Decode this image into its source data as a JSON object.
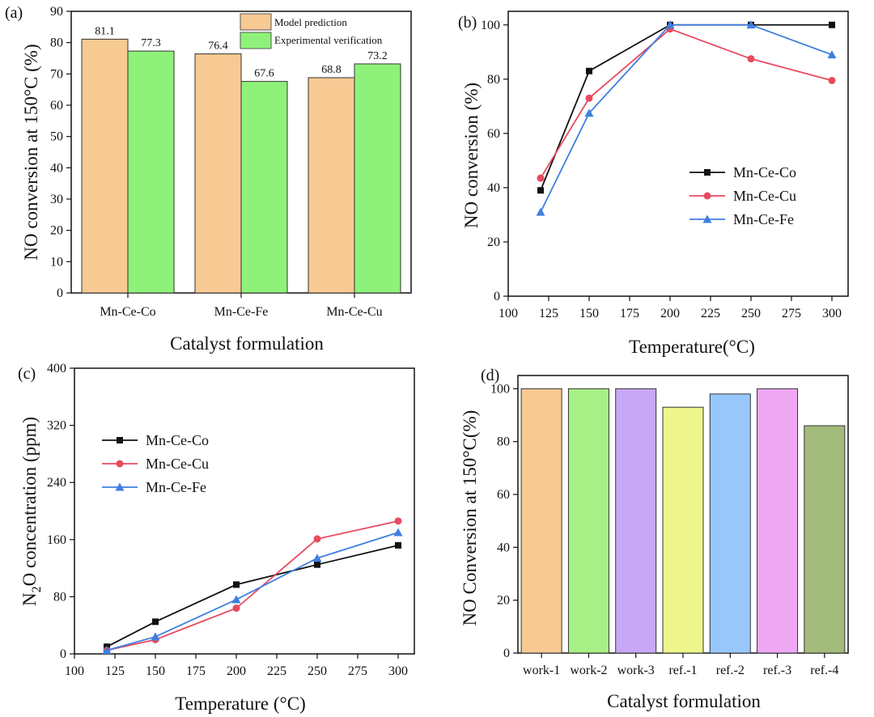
{
  "figure_colors": {
    "bar_model": "#f7c993",
    "bar_experiment": "#8ef27a",
    "series_co": "#111111",
    "series_cu": "#e84a5f",
    "series_fe": "#3f7fe0"
  },
  "chart_data": [
    {
      "panel": "(a)",
      "type": "bar",
      "title": "",
      "xlabel": "Catalyst formulation",
      "ylabel": "NO conversion at 150°C (%)",
      "ylim": [
        0,
        90
      ],
      "yticks": [
        0,
        10,
        20,
        30,
        40,
        50,
        60,
        70,
        80,
        90
      ],
      "categories": [
        "Mn-Ce-Co",
        "Mn-Ce-Fe",
        "Mn-Ce-Cu"
      ],
      "series": [
        {
          "name": "Model prediction",
          "color": "#f7c993",
          "values": [
            81.1,
            76.4,
            68.8
          ]
        },
        {
          "name": "Experimental verification",
          "color": "#8ef27a",
          "values": [
            77.3,
            67.6,
            73.2
          ]
        }
      ],
      "data_labels": [
        [
          "81.1",
          "77.3"
        ],
        [
          "76.4",
          "67.6"
        ],
        [
          "68.8",
          "73.2"
        ]
      ],
      "legend_position": "top-right"
    },
    {
      "panel": "(b)",
      "type": "line",
      "title": "",
      "xlabel": "Temperature(°C)",
      "ylabel": "NO conversion (%)",
      "xlim": [
        100,
        310
      ],
      "ylim": [
        0,
        105
      ],
      "xticks": [
        100,
        125,
        150,
        175,
        200,
        225,
        250,
        275,
        300
      ],
      "yticks": [
        0,
        20,
        40,
        60,
        80,
        100
      ],
      "x": [
        120,
        150,
        200,
        250,
        300
      ],
      "series": [
        {
          "name": "Mn-Ce-Co",
          "color": "#111111",
          "marker": "square",
          "values": [
            39,
            83,
            100,
            100,
            100
          ]
        },
        {
          "name": "Mn-Ce-Cu",
          "color": "#e84a5f",
          "marker": "circle",
          "values": [
            43.5,
            73,
            98.5,
            87.5,
            79.5
          ]
        },
        {
          "name": "Mn-Ce-Fe",
          "color": "#3f7fe0",
          "marker": "triangle",
          "values": [
            31,
            67.5,
            100,
            100,
            89
          ]
        }
      ],
      "legend_position": "center-right"
    },
    {
      "panel": "(c)",
      "type": "line",
      "title": "",
      "xlabel": "Temperature (°C)",
      "ylabel_main": "N",
      "ylabel_sub": "2",
      "ylabel_rest": "O concentration (ppm)",
      "xlim": [
        100,
        310
      ],
      "ylim": [
        0,
        400
      ],
      "xticks": [
        100,
        125,
        150,
        175,
        200,
        225,
        250,
        275,
        300
      ],
      "yticks": [
        0,
        80,
        160,
        240,
        320,
        400
      ],
      "x": [
        120,
        150,
        200,
        250,
        300
      ],
      "series": [
        {
          "name": "Mn-Ce-Co",
          "color": "#111111",
          "marker": "square",
          "values": [
            10,
            45,
            97,
            125,
            152
          ]
        },
        {
          "name": "Mn-Ce-Cu",
          "color": "#e84a5f",
          "marker": "circle",
          "values": [
            5,
            20,
            64,
            161,
            186
          ]
        },
        {
          "name": "Mn-Ce-Fe",
          "color": "#3f7fe0",
          "marker": "triangle",
          "values": [
            5,
            24,
            76,
            134,
            170
          ]
        }
      ],
      "legend_position": "upper-left"
    },
    {
      "panel": "(d)",
      "type": "bar",
      "title": "",
      "xlabel": "Catalyst formulation",
      "ylabel": "NO Conversion at 150°C(%)",
      "ylim": [
        0,
        105
      ],
      "yticks": [
        0,
        20,
        40,
        60,
        80,
        100
      ],
      "categories": [
        "work-1",
        "work-2",
        "work-3",
        "ref.-1",
        "ref.-2",
        "ref.-3",
        "ref.-4"
      ],
      "values": [
        100,
        100,
        100,
        93,
        98,
        100,
        86
      ],
      "colors": [
        "#f7c993",
        "#a8ef86",
        "#c7a8f6",
        "#eef58a",
        "#98c8fb",
        "#efa8f4",
        "#a3bb7b"
      ]
    }
  ]
}
